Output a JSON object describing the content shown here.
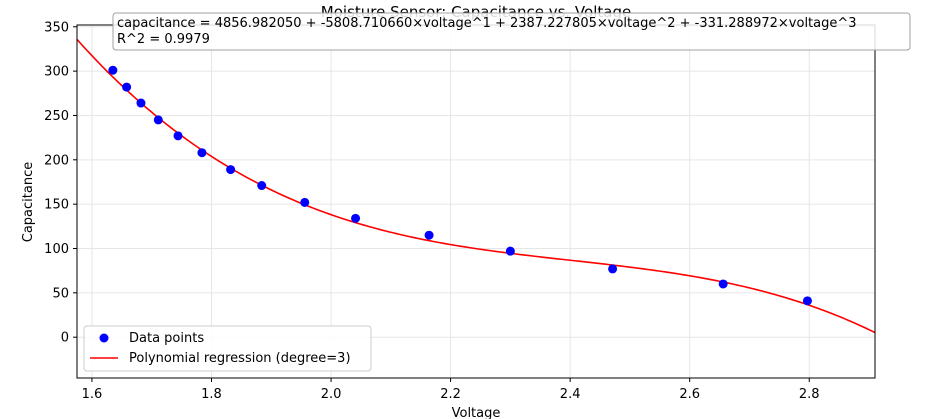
{
  "chart_data": {
    "type": "scatter",
    "title": "Moisture Sensor: Capacitance vs. Voltage",
    "xlabel": "Voltage",
    "ylabel": "Capacitance",
    "xlim": [
      1.575,
      2.91
    ],
    "ylim": [
      -46,
      352
    ],
    "xticks": [
      "1.6",
      "1.8",
      "2.0",
      "2.2",
      "2.4",
      "2.6",
      "2.8"
    ],
    "yticks": [
      "0",
      "50",
      "100",
      "150",
      "200",
      "250",
      "300",
      "350"
    ],
    "grid": true,
    "legend_placement": "lower-left",
    "series": [
      {
        "name": "Data points",
        "kind": "scatter",
        "color": "#0000ff",
        "x": [
          1.635,
          1.658,
          1.682,
          1.711,
          1.744,
          1.784,
          1.832,
          1.884,
          1.956,
          2.041,
          2.164,
          2.3,
          2.471,
          2.656,
          2.797
        ],
        "y": [
          301,
          282,
          264,
          245,
          227,
          208,
          189,
          171,
          152,
          134,
          115,
          97,
          77,
          60,
          41
        ]
      },
      {
        "name": "Polynomial regression (degree=3)",
        "kind": "line",
        "color": "#ff0000",
        "coefficients": [
          4856.98205,
          -5808.71066,
          2387.227805,
          -331.288972
        ]
      }
    ],
    "annotation": {
      "equation": "capacitance = 4856.982050 + -5808.710660×voltage^1 + 2387.227805×voltage^2 + -331.288972×voltage^3",
      "r_squared": "R^2 = 0.9979"
    }
  }
}
